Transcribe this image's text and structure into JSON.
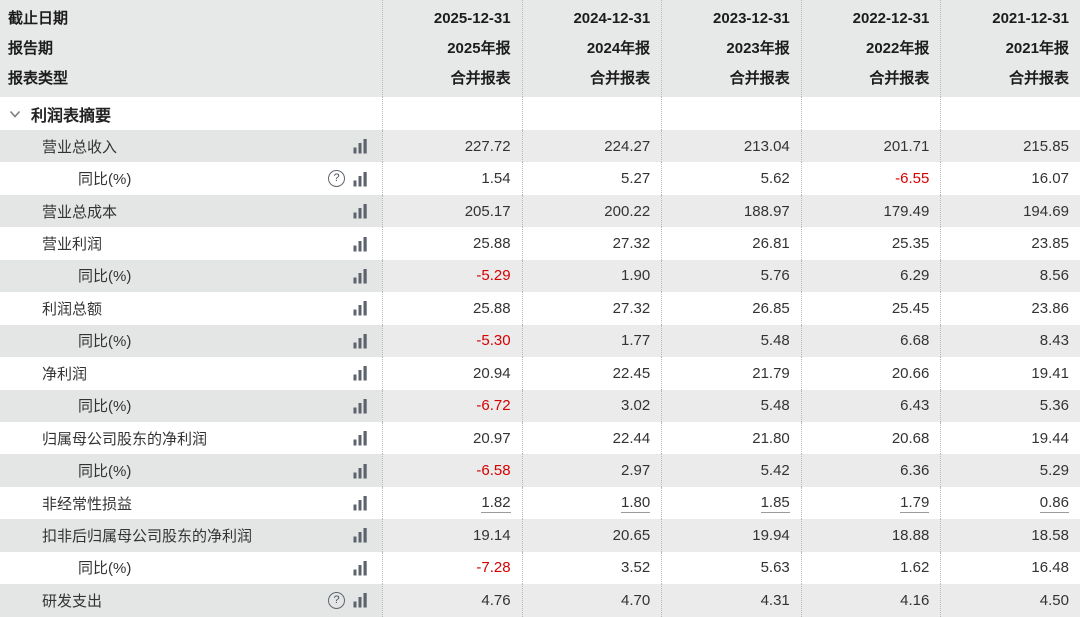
{
  "colors": {
    "header_bg": "#e7e8e8",
    "zebra_label_bg": "#e4e5e5",
    "zebra_data_bg": "#ebebec",
    "negative_value": "#d40000",
    "text": "#333333",
    "divider_dotted": "#b9b9b9"
  },
  "header": {
    "field_labels": [
      "截止日期",
      "报告期",
      "报表类型"
    ],
    "columns": [
      {
        "date": "2025-12-31",
        "period": "2025年报",
        "type": "合并报表"
      },
      {
        "date": "2024-12-31",
        "period": "2024年报",
        "type": "合并报表"
      },
      {
        "date": "2023-12-31",
        "period": "2023年报",
        "type": "合并报表"
      },
      {
        "date": "2022-12-31",
        "period": "2022年报",
        "type": "合并报表"
      },
      {
        "date": "2021-12-31",
        "period": "2021年报",
        "type": "合并报表"
      }
    ]
  },
  "icons": {
    "help": "?",
    "chart": "bar-chart-icon",
    "section_chevron": "chevron-down-icon"
  },
  "table": {
    "rows": [
      {
        "type": "section",
        "label": "利润表摘要"
      },
      {
        "label": "营业总收入",
        "indent": 1,
        "help": false,
        "underline": false,
        "values": [
          "227.72",
          "224.27",
          "213.04",
          "201.71",
          "215.85"
        ]
      },
      {
        "label": "同比(%)",
        "indent": 2,
        "help": true,
        "underline": false,
        "values": [
          "1.54",
          "5.27",
          "5.62",
          "-6.55",
          "16.07"
        ]
      },
      {
        "label": "营业总成本",
        "indent": 1,
        "help": false,
        "underline": false,
        "values": [
          "205.17",
          "200.22",
          "188.97",
          "179.49",
          "194.69"
        ]
      },
      {
        "label": "营业利润",
        "indent": 1,
        "help": false,
        "underline": false,
        "values": [
          "25.88",
          "27.32",
          "26.81",
          "25.35",
          "23.85"
        ]
      },
      {
        "label": "同比(%)",
        "indent": 2,
        "help": false,
        "underline": false,
        "values": [
          "-5.29",
          "1.90",
          "5.76",
          "6.29",
          "8.56"
        ]
      },
      {
        "label": "利润总额",
        "indent": 1,
        "help": false,
        "underline": false,
        "values": [
          "25.88",
          "27.32",
          "26.85",
          "25.45",
          "23.86"
        ]
      },
      {
        "label": "同比(%)",
        "indent": 2,
        "help": false,
        "underline": false,
        "values": [
          "-5.30",
          "1.77",
          "5.48",
          "6.68",
          "8.43"
        ]
      },
      {
        "label": "净利润",
        "indent": 1,
        "help": false,
        "underline": false,
        "values": [
          "20.94",
          "22.45",
          "21.79",
          "20.66",
          "19.41"
        ]
      },
      {
        "label": "同比(%)",
        "indent": 2,
        "help": false,
        "underline": false,
        "values": [
          "-6.72",
          "3.02",
          "5.48",
          "6.43",
          "5.36"
        ]
      },
      {
        "label": "归属母公司股东的净利润",
        "indent": 1,
        "help": false,
        "underline": false,
        "values": [
          "20.97",
          "22.44",
          "21.80",
          "20.68",
          "19.44"
        ]
      },
      {
        "label": "同比(%)",
        "indent": 2,
        "help": false,
        "underline": false,
        "values": [
          "-6.58",
          "2.97",
          "5.42",
          "6.36",
          "5.29"
        ]
      },
      {
        "label": "非经常性损益",
        "indent": 1,
        "help": false,
        "underline": true,
        "values": [
          "1.82",
          "1.80",
          "1.85",
          "1.79",
          "0.86"
        ]
      },
      {
        "label": "扣非后归属母公司股东的净利润",
        "indent": 1,
        "help": false,
        "underline": false,
        "values": [
          "19.14",
          "20.65",
          "19.94",
          "18.88",
          "18.58"
        ]
      },
      {
        "label": "同比(%)",
        "indent": 2,
        "help": false,
        "underline": false,
        "values": [
          "-7.28",
          "3.52",
          "5.63",
          "1.62",
          "16.48"
        ]
      },
      {
        "label": "研发支出",
        "indent": 1,
        "help": true,
        "underline": false,
        "values": [
          "4.76",
          "4.70",
          "4.31",
          "4.16",
          "4.50"
        ]
      }
    ]
  }
}
